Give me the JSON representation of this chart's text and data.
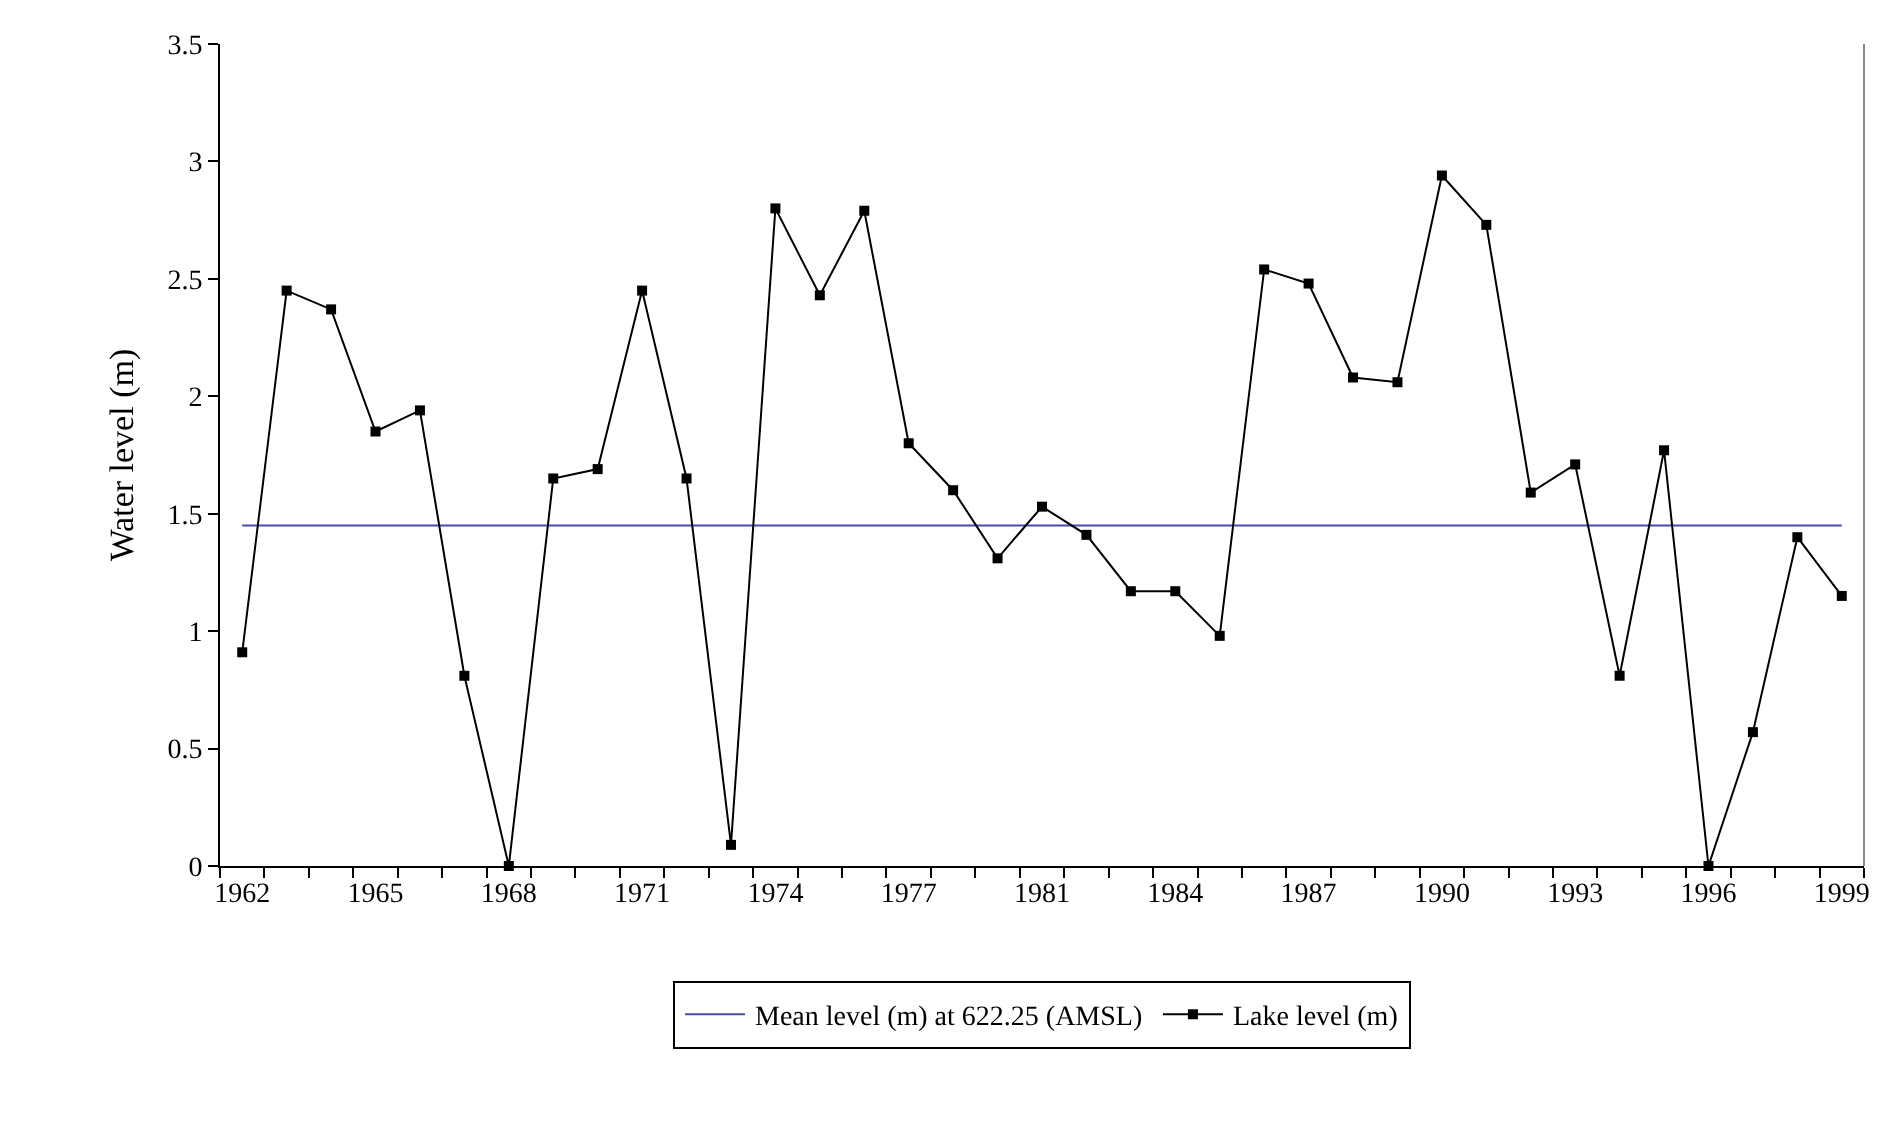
{
  "chart_data": {
    "type": "line",
    "ylabel": "Water level (m)",
    "categories": [
      "1962",
      null,
      null,
      "1965",
      null,
      null,
      "1968",
      null,
      null,
      "1971",
      null,
      null,
      "1974",
      null,
      null,
      "1977",
      null,
      null,
      "1981",
      null,
      null,
      "1984",
      null,
      null,
      "1987",
      null,
      null,
      "1990",
      null,
      null,
      "1993",
      null,
      null,
      "1996",
      null,
      null,
      "1999"
    ],
    "series": [
      {
        "name": "Mean level (m) at 622.25 (AMSL)",
        "color": "#4b4ba8",
        "marker": "none",
        "values": [
          1.45,
          1.45,
          1.45,
          1.45,
          1.45,
          1.45,
          1.45,
          1.45,
          1.45,
          1.45,
          1.45,
          1.45,
          1.45,
          1.45,
          1.45,
          1.45,
          1.45,
          1.45,
          1.45,
          1.45,
          1.45,
          1.45,
          1.45,
          1.45,
          1.45,
          1.45,
          1.45,
          1.45,
          1.45,
          1.45,
          1.45,
          1.45,
          1.45,
          1.45,
          1.45,
          1.45,
          1.45
        ]
      },
      {
        "name": "Lake level (m)",
        "color": "#000000",
        "marker": "square",
        "values": [
          0.91,
          2.45,
          2.37,
          1.85,
          1.94,
          0.81,
          0,
          1.65,
          1.69,
          2.45,
          1.65,
          0.09,
          2.8,
          2.43,
          2.79,
          1.8,
          1.6,
          1.31,
          1.53,
          1.41,
          1.17,
          1.17,
          0.98,
          2.54,
          2.48,
          2.08,
          2.06,
          2.94,
          2.73,
          1.59,
          1.71,
          0.81,
          1.77,
          0,
          0.57,
          1.4,
          1.15
        ]
      }
    ],
    "ylim": [
      0,
      3.5
    ],
    "yticks": [
      0,
      0.5,
      1,
      1.5,
      2,
      2.5,
      3,
      3.5
    ],
    "grid": false,
    "legend": "bottom",
    "line_style": "solid"
  }
}
